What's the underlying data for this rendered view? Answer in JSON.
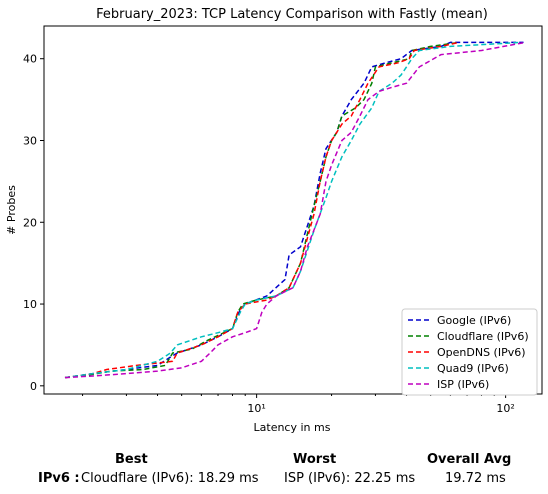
{
  "chart_data": {
    "type": "line",
    "title": "February_2023: TCP Latency Comparison with Fastly (mean)",
    "xlabel": "Latency in ms",
    "ylabel": "# Probes",
    "xscale": "log",
    "xlim": [
      1.4,
      140
    ],
    "ylim": [
      -1,
      44
    ],
    "x_ticks": [
      {
        "value": 10,
        "label": "10¹"
      },
      {
        "value": 100,
        "label": "10²"
      }
    ],
    "y_ticks": [
      0,
      10,
      20,
      30,
      40
    ],
    "legend_position": "lower-right",
    "series": [
      {
        "name": "Google (IPv6)",
        "color": "#0000cc",
        "points": [
          [
            1.7,
            1
          ],
          [
            2.2,
            1.5
          ],
          [
            3,
            2
          ],
          [
            4,
            2.5
          ],
          [
            4.5,
            3.5
          ],
          [
            4.8,
            4
          ],
          [
            6,
            5
          ],
          [
            7,
            6
          ],
          [
            8,
            7
          ],
          [
            8.5,
            9
          ],
          [
            9,
            10
          ],
          [
            11,
            11
          ],
          [
            13,
            13
          ],
          [
            13.5,
            16
          ],
          [
            15,
            17
          ],
          [
            17,
            22
          ],
          [
            18,
            26
          ],
          [
            19,
            29
          ],
          [
            21,
            31
          ],
          [
            22,
            33
          ],
          [
            24,
            35
          ],
          [
            27,
            37
          ],
          [
            29,
            39
          ],
          [
            33,
            39.5
          ],
          [
            38,
            40
          ],
          [
            42,
            41
          ],
          [
            55,
            41.5
          ],
          [
            60,
            42
          ],
          [
            100,
            42
          ],
          [
            118,
            42
          ]
        ]
      },
      {
        "name": "Cloudflare (IPv6)",
        "color": "#008000",
        "points": [
          [
            1.7,
            1
          ],
          [
            2.2,
            1.4
          ],
          [
            2.6,
            1.8
          ],
          [
            3.5,
            2
          ],
          [
            4.3,
            2.5
          ],
          [
            4.6,
            4
          ],
          [
            5.5,
            4.5
          ],
          [
            6.3,
            5.5
          ],
          [
            8,
            7
          ],
          [
            8.4,
            9
          ],
          [
            8.8,
            10
          ],
          [
            10,
            10.5
          ],
          [
            12,
            11
          ],
          [
            13.5,
            12
          ],
          [
            15,
            15
          ],
          [
            17,
            22
          ],
          [
            18,
            25
          ],
          [
            19,
            28
          ],
          [
            20,
            30
          ],
          [
            21,
            31
          ],
          [
            22,
            33
          ],
          [
            25,
            34
          ],
          [
            27,
            35
          ],
          [
            29,
            37
          ],
          [
            30,
            39
          ],
          [
            35,
            39.5
          ],
          [
            41,
            40
          ],
          [
            42,
            41
          ],
          [
            50,
            41.5
          ],
          [
            65,
            42
          ]
        ]
      },
      {
        "name": "OpenDNS (IPv6)",
        "color": "#ff0000",
        "points": [
          [
            1.7,
            1
          ],
          [
            2.2,
            1.5
          ],
          [
            2.5,
            2
          ],
          [
            3.3,
            2.5
          ],
          [
            4.6,
            3
          ],
          [
            4.8,
            4
          ],
          [
            6,
            5
          ],
          [
            7,
            6
          ],
          [
            8,
            7
          ],
          [
            8.4,
            9
          ],
          [
            9,
            10
          ],
          [
            11,
            10.5
          ],
          [
            12,
            11
          ],
          [
            13.5,
            12
          ],
          [
            15,
            15
          ],
          [
            17,
            21
          ],
          [
            18,
            25
          ],
          [
            19,
            28
          ],
          [
            20,
            30
          ],
          [
            21,
            31
          ],
          [
            22,
            32
          ],
          [
            24,
            33
          ],
          [
            26,
            35
          ],
          [
            28,
            37
          ],
          [
            31,
            39
          ],
          [
            37,
            39.5
          ],
          [
            41,
            40
          ],
          [
            43,
            41
          ],
          [
            55,
            41.5
          ],
          [
            65,
            42
          ]
        ]
      },
      {
        "name": "Quad9 (IPv6)",
        "color": "#00bfbf",
        "points": [
          [
            1.7,
            1
          ],
          [
            2.2,
            1.5
          ],
          [
            3,
            2
          ],
          [
            4,
            3
          ],
          [
            4.5,
            4
          ],
          [
            4.8,
            5
          ],
          [
            6,
            6
          ],
          [
            7,
            6.5
          ],
          [
            8,
            7
          ],
          [
            8.6,
            9
          ],
          [
            9,
            10
          ],
          [
            10,
            10.5
          ],
          [
            12,
            11
          ],
          [
            14,
            12
          ],
          [
            15,
            14
          ],
          [
            17,
            19
          ],
          [
            19,
            23
          ],
          [
            20,
            25
          ],
          [
            22,
            28
          ],
          [
            24,
            30
          ],
          [
            26,
            32
          ],
          [
            29,
            34
          ],
          [
            31,
            36
          ],
          [
            35,
            37
          ],
          [
            38,
            38
          ],
          [
            40,
            39
          ],
          [
            42,
            40
          ],
          [
            45,
            41
          ],
          [
            60,
            41.5
          ],
          [
            115,
            42
          ]
        ]
      },
      {
        "name": "ISP (IPv6)",
        "color": "#bf00bf",
        "points": [
          [
            1.7,
            1
          ],
          [
            2.2,
            1.2
          ],
          [
            3,
            1.5
          ],
          [
            4,
            1.8
          ],
          [
            5,
            2.2
          ],
          [
            6,
            3
          ],
          [
            6.5,
            4
          ],
          [
            7,
            5
          ],
          [
            8,
            6
          ],
          [
            9,
            6.5
          ],
          [
            10,
            7
          ],
          [
            10.5,
            9
          ],
          [
            11,
            10
          ],
          [
            12,
            11
          ],
          [
            14,
            12
          ],
          [
            15,
            14
          ],
          [
            16,
            17
          ],
          [
            18,
            21
          ],
          [
            19,
            25
          ],
          [
            20,
            27
          ],
          [
            22,
            30
          ],
          [
            24,
            31
          ],
          [
            26,
            33
          ],
          [
            28,
            35
          ],
          [
            31,
            36
          ],
          [
            35,
            36.5
          ],
          [
            40,
            37
          ],
          [
            45,
            39
          ],
          [
            55,
            40.5
          ],
          [
            80,
            41
          ],
          [
            120,
            42
          ]
        ]
      }
    ]
  },
  "summary": {
    "headers": {
      "best": "Best",
      "worst": "Worst",
      "avg": "Overall Avg"
    },
    "row_label": "IPv6 :",
    "best": "Cloudflare (IPv6): 18.29 ms",
    "worst": "ISP (IPv6): 22.25 ms",
    "avg": "19.72 ms"
  }
}
